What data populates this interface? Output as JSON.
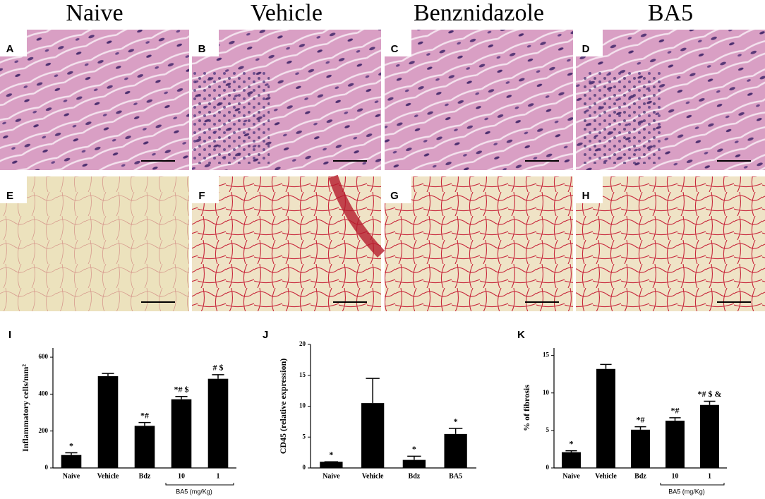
{
  "columns": [
    "Naive",
    "Vehicle",
    "Benznidazole",
    "BA5"
  ],
  "panels": [
    "A",
    "B",
    "C",
    "D",
    "E",
    "F",
    "G",
    "H",
    "I",
    "J",
    "K"
  ],
  "chart_data": [
    {
      "type": "bar",
      "ylabel": "Inflammatory cells/mm²",
      "categories": [
        "Naive",
        "Vehicle",
        "Bdz",
        "10",
        "1"
      ],
      "values": [
        70,
        497,
        228,
        372,
        483
      ],
      "errors": [
        12,
        15,
        18,
        15,
        22
      ],
      "annotations": [
        "*",
        null,
        "*#",
        "*# $",
        "# $"
      ],
      "group_label": "BA5 (mg/Kg)",
      "color": "#000000",
      "ylim": [
        0,
        650
      ],
      "yticks": [
        0,
        200,
        400,
        600
      ]
    },
    {
      "type": "bar",
      "ylabel": "CD45 (relative expression)",
      "categories": [
        "Naive",
        "Vehicle",
        "Bdz",
        "BA5"
      ],
      "values": [
        1,
        10.5,
        1.3,
        5.5
      ],
      "errors": [
        0,
        4,
        0.6,
        0.9
      ],
      "annotations": [
        "*",
        null,
        "*",
        "*"
      ],
      "color": "#000000",
      "ylim": [
        0,
        20
      ],
      "yticks": [
        0,
        5,
        10,
        15,
        20
      ]
    },
    {
      "type": "bar",
      "ylabel": "% of fibrosis",
      "categories": [
        "Naive",
        "Vehicle",
        "Bdz",
        "10",
        "1"
      ],
      "values": [
        2.1,
        13.2,
        5.1,
        6.3,
        8.4
      ],
      "errors": [
        0.2,
        0.6,
        0.4,
        0.4,
        0.5
      ],
      "annotations": [
        "*",
        null,
        "*#",
        "*#",
        "*# $ &"
      ],
      "group_label": "BA5 (mg/Kg)",
      "color": "#000000",
      "ylim": [
        0,
        16
      ],
      "yticks": [
        0,
        5,
        10,
        15
      ]
    }
  ]
}
